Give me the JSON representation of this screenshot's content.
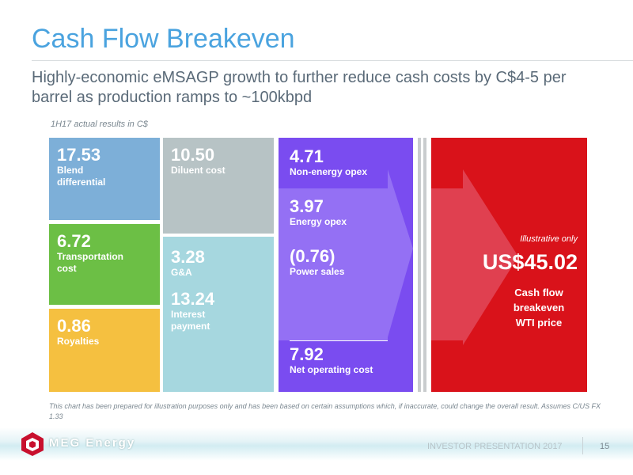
{
  "header": {
    "title": "Cash Flow Breakeven",
    "subtitle": "Highly-economic eMSAGP growth to further reduce cash costs by C$4-5 per barrel as production ramps to ~100kbpd",
    "note": "1H17 actual results in C$"
  },
  "boxes": [
    {
      "value": "17.53",
      "label": "Blend differential"
    },
    {
      "value": "6.72",
      "label": "Transportation cost"
    },
    {
      "value": "0.86",
      "label": "Royalties"
    },
    {
      "value": "10.50",
      "label": "Diluent cost"
    },
    {
      "value": "3.28",
      "label": "G&A"
    },
    {
      "value": "13.24",
      "label": "Interest payment"
    }
  ],
  "opex": [
    {
      "value": "4.71",
      "label": "Non-energy opex"
    },
    {
      "value": "3.97",
      "label": "Energy opex"
    },
    {
      "value": "(0.76)",
      "label": "Power sales"
    },
    {
      "value": "7.92",
      "label": "Net operating cost"
    }
  ],
  "result": {
    "tag": "Illustrative only",
    "value": "US$45.02",
    "label": "Cash flow breakeven WTI price"
  },
  "footnote": "This chart has been prepared for illustration purposes only and has been based on certain assumptions which, if inaccurate, could change the overall result. Assumes C/US FX 1.33",
  "footer": {
    "logo": "MEG Energy",
    "presentation": "INVESTOR PRESENTATION 2017",
    "page": "15"
  }
}
